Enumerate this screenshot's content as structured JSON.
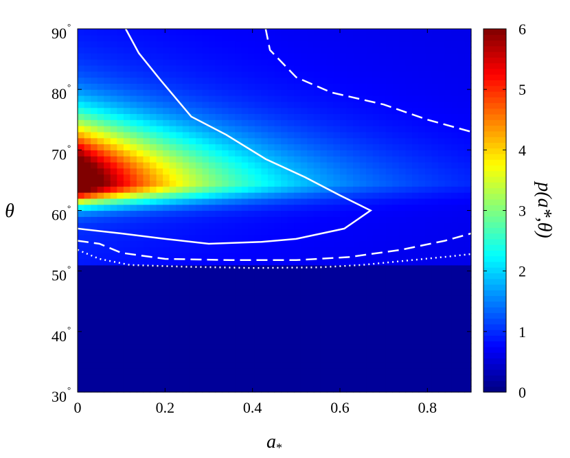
{
  "chart_data": {
    "type": "heatmap",
    "title": "",
    "xlabel": "a",
    "xlabel_subscript": "*",
    "ylabel": "θ",
    "colorbar_label": "p(a*,θ)",
    "xlim": [
      0,
      0.9
    ],
    "ylim": [
      30,
      90
    ],
    "clim": [
      0,
      6
    ],
    "colormap": "jet",
    "x_ticks": [
      0,
      0.2,
      0.4,
      0.6,
      0.8
    ],
    "x_tick_labels": [
      "0",
      "0.2",
      "0.4",
      "0.6",
      "0.8"
    ],
    "y_ticks": [
      30,
      40,
      50,
      60,
      70,
      80,
      90
    ],
    "y_tick_labels": [
      "30",
      "40",
      "50",
      "60",
      "70",
      "80",
      "90"
    ],
    "y_tick_suffix": "°",
    "colorbar_ticks": [
      0,
      1,
      2,
      3,
      4,
      5,
      6
    ],
    "colorbar_tick_labels": [
      "0",
      "1",
      "2",
      "3",
      "4",
      "5",
      "6"
    ],
    "grid": {
      "nx": 60,
      "ny": 60
    },
    "density_model": {
      "cutoff_theta": 51,
      "peak_value": 6.0,
      "peak_theta": 64.5,
      "peak_a": 0.0,
      "upper_theta_width": 10,
      "lower_theta_width": 3.2,
      "a_decay_scale": 0.3
    },
    "contours": [
      {
        "name": "solid",
        "style": "solid",
        "points": [
          [
            0.11,
            90
          ],
          [
            0.14,
            86
          ],
          [
            0.19,
            81.5
          ],
          [
            0.26,
            75.5
          ],
          [
            0.34,
            72.5
          ],
          [
            0.43,
            68.5
          ],
          [
            0.52,
            65.5
          ],
          [
            0.6,
            62.5
          ],
          [
            0.67,
            60
          ],
          [
            0.61,
            57
          ],
          [
            0.5,
            55.3
          ],
          [
            0.42,
            54.8
          ],
          [
            0.3,
            54.5
          ],
          [
            0.2,
            55.3
          ],
          [
            0.1,
            56.2
          ],
          [
            0.0,
            57
          ]
        ]
      },
      {
        "name": "dashed",
        "style": "dashed",
        "points": [
          [
            0.43,
            90
          ],
          [
            0.44,
            86.5
          ],
          [
            0.46,
            85
          ],
          [
            0.5,
            82
          ],
          [
            0.58,
            79.5
          ],
          [
            0.7,
            77.5
          ],
          [
            0.8,
            75
          ],
          [
            0.9,
            73
          ]
        ],
        "points_lower": [
          [
            0.0,
            55
          ],
          [
            0.05,
            54.5
          ],
          [
            0.1,
            53
          ],
          [
            0.2,
            52
          ],
          [
            0.35,
            51.8
          ],
          [
            0.5,
            51.8
          ],
          [
            0.62,
            52.3
          ],
          [
            0.74,
            53.5
          ],
          [
            0.84,
            55
          ],
          [
            0.9,
            56.2
          ]
        ]
      },
      {
        "name": "dotted",
        "style": "dotted",
        "points": [
          [
            0.0,
            53.5
          ],
          [
            0.05,
            52
          ],
          [
            0.12,
            51
          ],
          [
            0.25,
            50.7
          ],
          [
            0.4,
            50.5
          ],
          [
            0.55,
            50.6
          ],
          [
            0.65,
            51
          ],
          [
            0.75,
            51.7
          ],
          [
            0.85,
            52.4
          ],
          [
            0.9,
            52.8
          ]
        ]
      }
    ]
  }
}
